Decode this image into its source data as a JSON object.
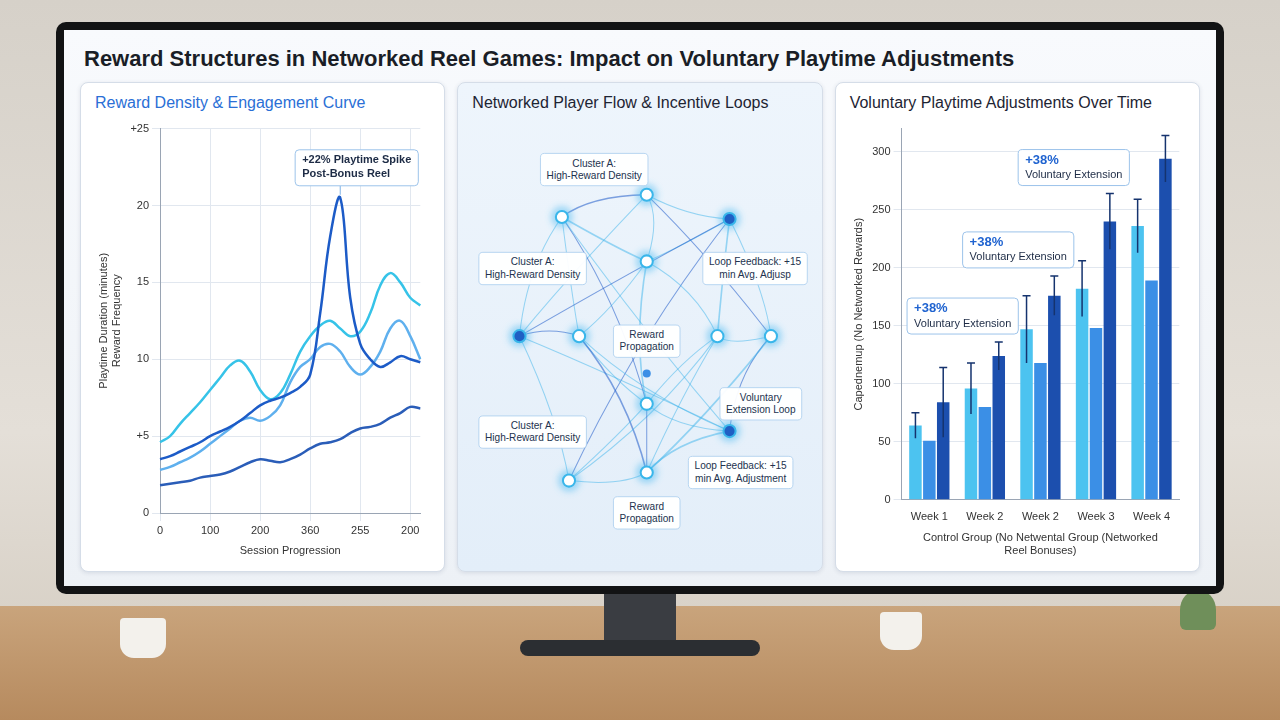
{
  "title": "Reward Structures in Networked Reel Games: Impact on Voluntary Playtime Adjustments",
  "chart_data": [
    {
      "type": "line",
      "title": "Reward Density & Engagement Curve",
      "x_label": "Session Progression",
      "y_label": [
        "Playtime Duration (minutes)",
        "Reward Frequency"
      ],
      "categories": [
        "0",
        null,
        null,
        null,
        null,
        "100",
        null,
        null,
        null,
        null,
        "200",
        null,
        null,
        null,
        null,
        "360",
        null,
        null,
        null,
        null,
        "255",
        null,
        null,
        null,
        null,
        "200",
        null
      ],
      "series": [
        {
          "color": "#1c5bc7",
          "values": [
            3.5,
            3.7,
            4,
            4.3,
            4.6,
            5,
            5.3,
            5.6,
            6,
            6.5,
            7,
            7.3,
            7.5,
            7.8,
            8.2,
            9,
            13,
            18,
            20.5,
            14,
            11,
            10,
            9.5,
            9.8,
            10.2,
            10,
            9.8
          ]
        },
        {
          "color": "#36c3e8",
          "values": [
            4.6,
            5,
            5.8,
            6.5,
            7.2,
            8,
            8.8,
            9.6,
            9.9,
            9.2,
            8,
            7.4,
            7.8,
            9,
            10.5,
            11.5,
            12.2,
            12.5,
            12,
            11.5,
            11.8,
            13,
            14.8,
            15.6,
            15,
            14,
            13.5
          ]
        },
        {
          "color": "#5fb0ee",
          "values": [
            2.8,
            3,
            3.3,
            3.6,
            4,
            4.5,
            5,
            5.5,
            6,
            6.2,
            6,
            6.3,
            7,
            8.5,
            9.5,
            10,
            10.8,
            11,
            10.5,
            9.5,
            9,
            9.5,
            10.5,
            12,
            12.5,
            11.5,
            10
          ]
        },
        {
          "color": "#2a5db8",
          "values": [
            1.8,
            1.9,
            2,
            2.1,
            2.3,
            2.4,
            2.5,
            2.7,
            3,
            3.3,
            3.5,
            3.4,
            3.3,
            3.5,
            3.8,
            4.2,
            4.5,
            4.6,
            4.8,
            5.2,
            5.5,
            5.6,
            5.8,
            6.2,
            6.5,
            6.9,
            6.8
          ]
        }
      ],
      "ylim": [
        0,
        25
      ],
      "yticks": [
        0,
        {
          "value": 5,
          "label": "+5"
        },
        10,
        15,
        20,
        {
          "value": 25,
          "label": "+25"
        }
      ],
      "grid": true,
      "annotations": [
        "+22% Playtime Spike Post-Bonus Reel"
      ]
    },
    {
      "type": "bar",
      "title": "Voluntary Playtime Adjustments Over Time",
      "x_label": "Control Group (No Netwental Group (Networked Reel Bonuses)",
      "y_label": "Capednemup (No Networked Rewards)",
      "categories": [
        "Week 1",
        "Week 2",
        "Week 2",
        "Week 3",
        "Week 4"
      ],
      "series": [
        {
          "color": "#4cc3f0",
          "values": [
            64,
            96,
            147,
            182,
            236
          ],
          "errors": [
            11,
            22,
            29,
            24,
            23
          ]
        },
        {
          "color": "#3b8fe6",
          "values": [
            51,
            80,
            118,
            148,
            189
          ]
        },
        {
          "color": "#1c4fae",
          "values": [
            84,
            124,
            176,
            240,
            294
          ],
          "errors": [
            30,
            12,
            17,
            24,
            20
          ]
        }
      ],
      "ylim": [
        0,
        320
      ],
      "yticks": [
        0,
        50,
        100,
        150,
        200,
        250,
        300
      ],
      "grid": true,
      "annotations": [
        {
          "title": "+38%",
          "text": "Voluntary Extension"
        },
        {
          "title": "+38%",
          "text": "Voluntary Extension"
        },
        {
          "title": "+38%",
          "text": "Voluntary Extension"
        }
      ]
    }
  ],
  "diagram": {
    "title": "Networked Player Flow & Incentive Loops",
    "labels": [
      "Cluster A: High-Reward Density",
      "Cluster A: High-Reward Density",
      "Cluster A: High-Reward Density",
      "Reward Propagation",
      "Loop Feedback: +15 min Avg. Adjusp",
      "Voluntary Extension Loop",
      "Reward Propagation",
      "Loop Feedback: +15 min Avg. Adjustment"
    ]
  }
}
